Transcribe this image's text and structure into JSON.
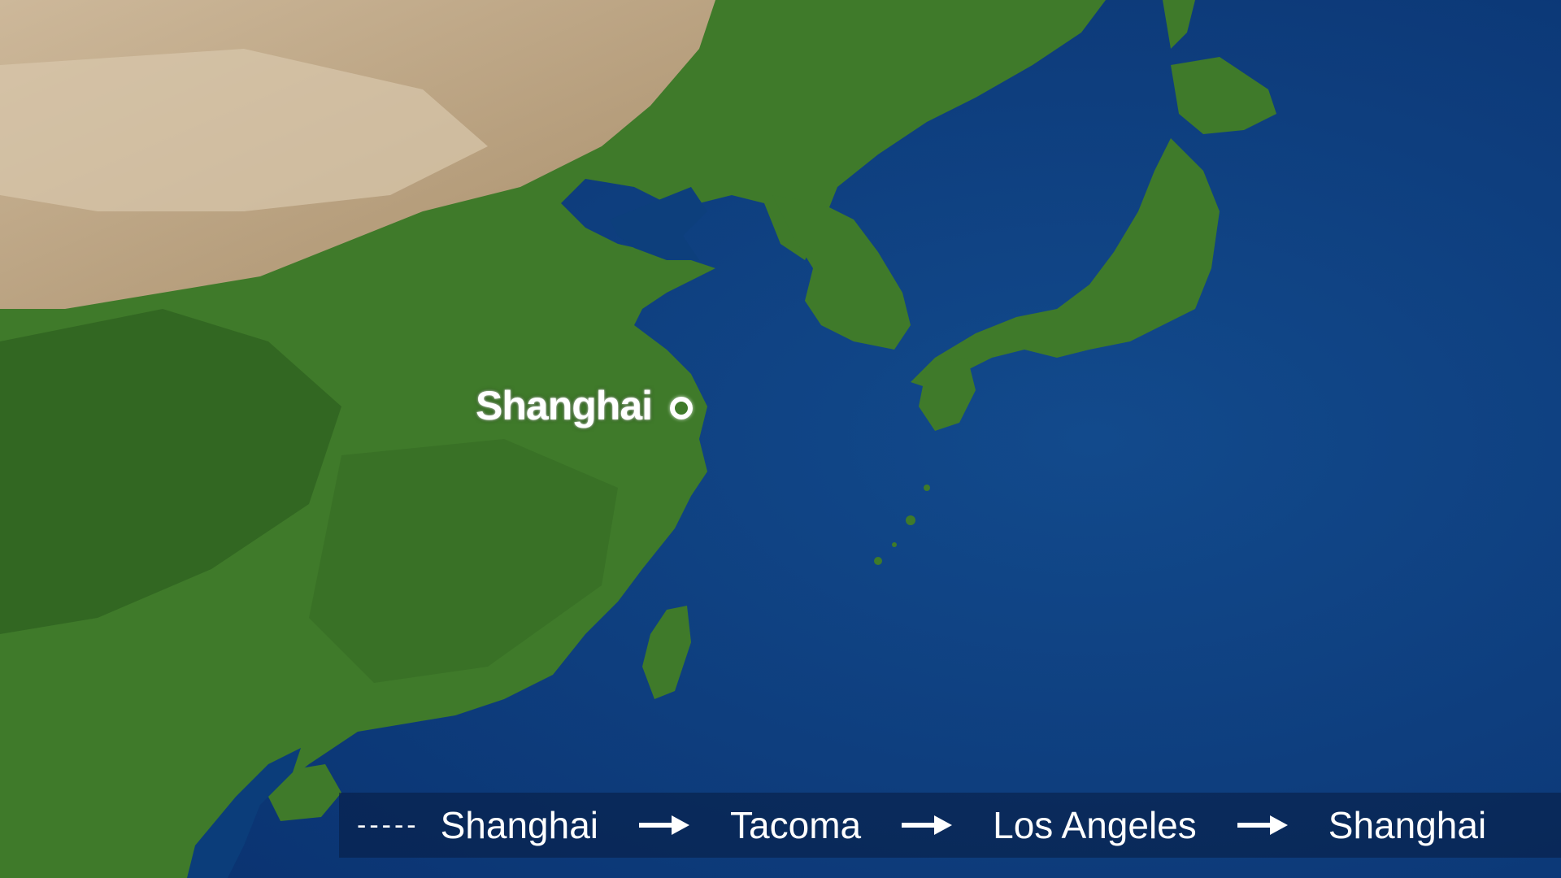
{
  "map": {
    "colors": {
      "ocean": "#0b3d7a",
      "ocean_deep": "#0a3270",
      "land": "#3f7a2a",
      "land_dark": "#2d5f1f",
      "desert": "#b59c78",
      "desert_light": "#cdb89a",
      "label": "#ffffff"
    },
    "city": {
      "name": "Shanghai",
      "marker_icon": "circle-marker-icon"
    }
  },
  "route": {
    "line_style_label": "-----",
    "stops": [
      "Shanghai",
      "Tacoma",
      "Los Angeles",
      "Shanghai"
    ],
    "arrow_icon": "right-arrow-icon"
  }
}
